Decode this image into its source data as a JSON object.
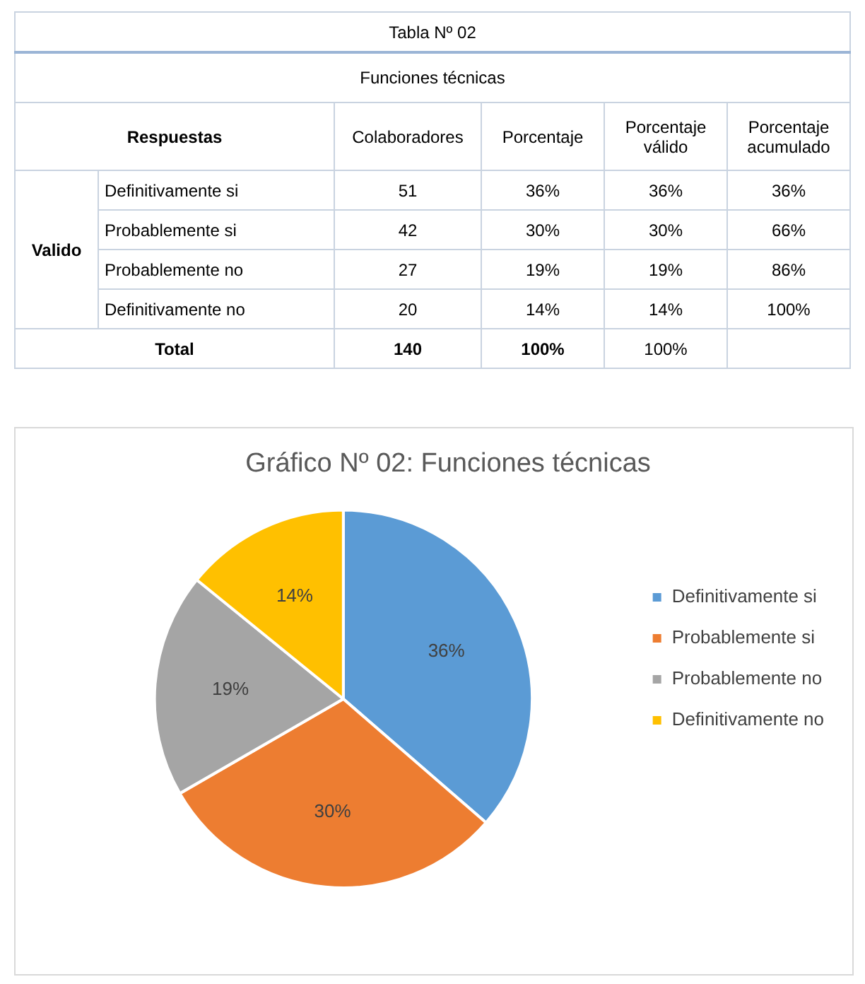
{
  "chart_data": [
    {
      "type": "other",
      "title": "Tabla Nº 02",
      "subtitle": "Funciones técnicas",
      "annotations": [
        "Respuestas",
        "Colaboradores",
        "Porcentaje",
        "Porcentaje válido",
        "Porcentaje acumulado",
        "Valido",
        "Definitivamente si",
        "51",
        "36%",
        "36%",
        "36%",
        "Probablemente si",
        "42",
        "30%",
        "30%",
        "66%",
        "Probablemente no",
        "27",
        "19%",
        "19%",
        "86%",
        "Definitivamente no",
        "20",
        "14%",
        "14%",
        "100%",
        "Total",
        "140",
        "100%",
        "100%"
      ]
    },
    {
      "type": "pie",
      "title": "Gráfico Nº 02: Funciones técnicas",
      "categories": [
        "Definitivamente si",
        "Probablemente si",
        "Probablemente no",
        "Definitivamente no"
      ],
      "values": [
        36,
        30,
        19,
        14
      ],
      "colors": [
        "#5b9bd5",
        "#ed7d31",
        "#a5a5a5",
        "#ffc000"
      ],
      "value_labels": [
        "36%",
        "30%",
        "19%",
        "14%"
      ],
      "legend": "right"
    }
  ]
}
